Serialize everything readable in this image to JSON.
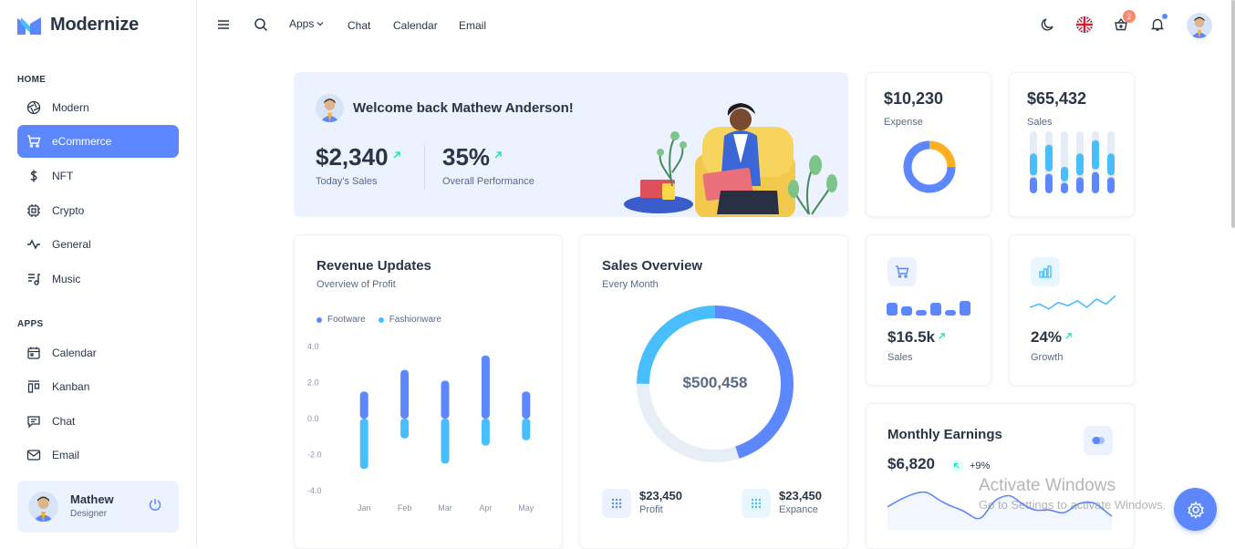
{
  "app": {
    "name": "Modernize"
  },
  "sidebar": {
    "home_caption": "HOME",
    "home_items": [
      {
        "label": "Modern",
        "icon": "aperture-icon"
      },
      {
        "label": "eCommerce",
        "icon": "shopping-cart-icon",
        "active": true
      },
      {
        "label": "NFT",
        "icon": "dollar-icon"
      },
      {
        "label": "Crypto",
        "icon": "cpu-icon"
      },
      {
        "label": "General",
        "icon": "activity-icon"
      },
      {
        "label": "Music",
        "icon": "playlist-icon"
      }
    ],
    "apps_caption": "APPS",
    "apps_items": [
      {
        "label": "Calendar",
        "icon": "calendar-icon"
      },
      {
        "label": "Kanban",
        "icon": "kanban-icon"
      },
      {
        "label": "Chat",
        "icon": "chat-icon"
      },
      {
        "label": "Email",
        "icon": "mail-icon"
      }
    ],
    "profile": {
      "name": "Mathew",
      "role": "Designer"
    }
  },
  "topbar": {
    "apps_label": "Apps",
    "links": [
      "Chat",
      "Calendar",
      "Email"
    ],
    "cart_count": "2"
  },
  "welcome": {
    "greeting": "Welcome back Mathew Anderson!",
    "sales_value": "$2,340",
    "sales_label": "Today's Sales",
    "performance_value": "35%",
    "performance_label": "Overall Performance"
  },
  "expense": {
    "value": "$10,230",
    "label": "Expense"
  },
  "sales_card": {
    "value": "$65,432",
    "label": "Sales"
  },
  "revenue": {
    "title": "Revenue Updates",
    "subtitle": "Overview of Profit",
    "legend": [
      "Footware",
      "Fashionware"
    ]
  },
  "sales_overview": {
    "title": "Sales Overview",
    "subtitle": "Every Month",
    "total": "$500,458",
    "profit_value": "$23,450",
    "profit_label": "Profit",
    "expense_value": "$23,450",
    "expense_label": "Expance"
  },
  "small_sales": {
    "value": "$16.5k",
    "label": "Sales"
  },
  "growth": {
    "value": "24%",
    "label": "Growth"
  },
  "monthly": {
    "title": "Monthly Earnings",
    "value": "$6,820",
    "change": "+9%"
  },
  "watermark": {
    "title": "Activate Windows",
    "subtitle": "Go to Settings to activate Windows."
  },
  "colors": {
    "primary": "#5d87ff",
    "secondary": "#49beff",
    "light_primary": "#ecf2ff",
    "success": "#13deb9",
    "warning": "#ffae1f"
  },
  "chart_data": [
    {
      "type": "bar",
      "title": "Revenue Updates",
      "categories": [
        "Jan",
        "Feb",
        "Mar",
        "Apr",
        "May"
      ],
      "series": [
        {
          "name": "Footware",
          "values": [
            1.5,
            2.7,
            2.1,
            3.5,
            1.5
          ]
        },
        {
          "name": "Fashionware",
          "values": [
            -2.8,
            -1.1,
            -2.5,
            -1.5,
            -1.2
          ]
        }
      ],
      "yticks": [
        "4.0",
        "2.0",
        "0.0",
        "-2.0",
        "-4.0"
      ],
      "ylim": [
        -4,
        4
      ],
      "grid": false,
      "legend": "top-left"
    },
    {
      "type": "bar",
      "title": "Sales",
      "categories": [
        "1",
        "2",
        "3",
        "4",
        "5",
        "6"
      ],
      "series": [
        {
          "name": "",
          "values": [
            45,
            55,
            30,
            45,
            60,
            45
          ]
        }
      ]
    },
    {
      "type": "pie",
      "title": "Expense",
      "slices": [
        {
          "value": 25,
          "color": "#ffae1f"
        },
        {
          "value": 75,
          "color": "#5d87ff"
        }
      ]
    },
    {
      "type": "pie",
      "title": "Sales Overview",
      "slices": [
        {
          "value": 45,
          "color": "#5d87ff"
        },
        {
          "value": 30,
          "color": "#e8eef5"
        },
        {
          "value": 25,
          "color": "#49beff"
        }
      ]
    },
    {
      "type": "line",
      "title": "Growth",
      "values": [
        5,
        7,
        4,
        8,
        6,
        9,
        5,
        10,
        7,
        12
      ]
    },
    {
      "type": "area",
      "title": "Monthly Earnings",
      "values": [
        20,
        35,
        25,
        10,
        30,
        20,
        15,
        25,
        10
      ]
    }
  ]
}
